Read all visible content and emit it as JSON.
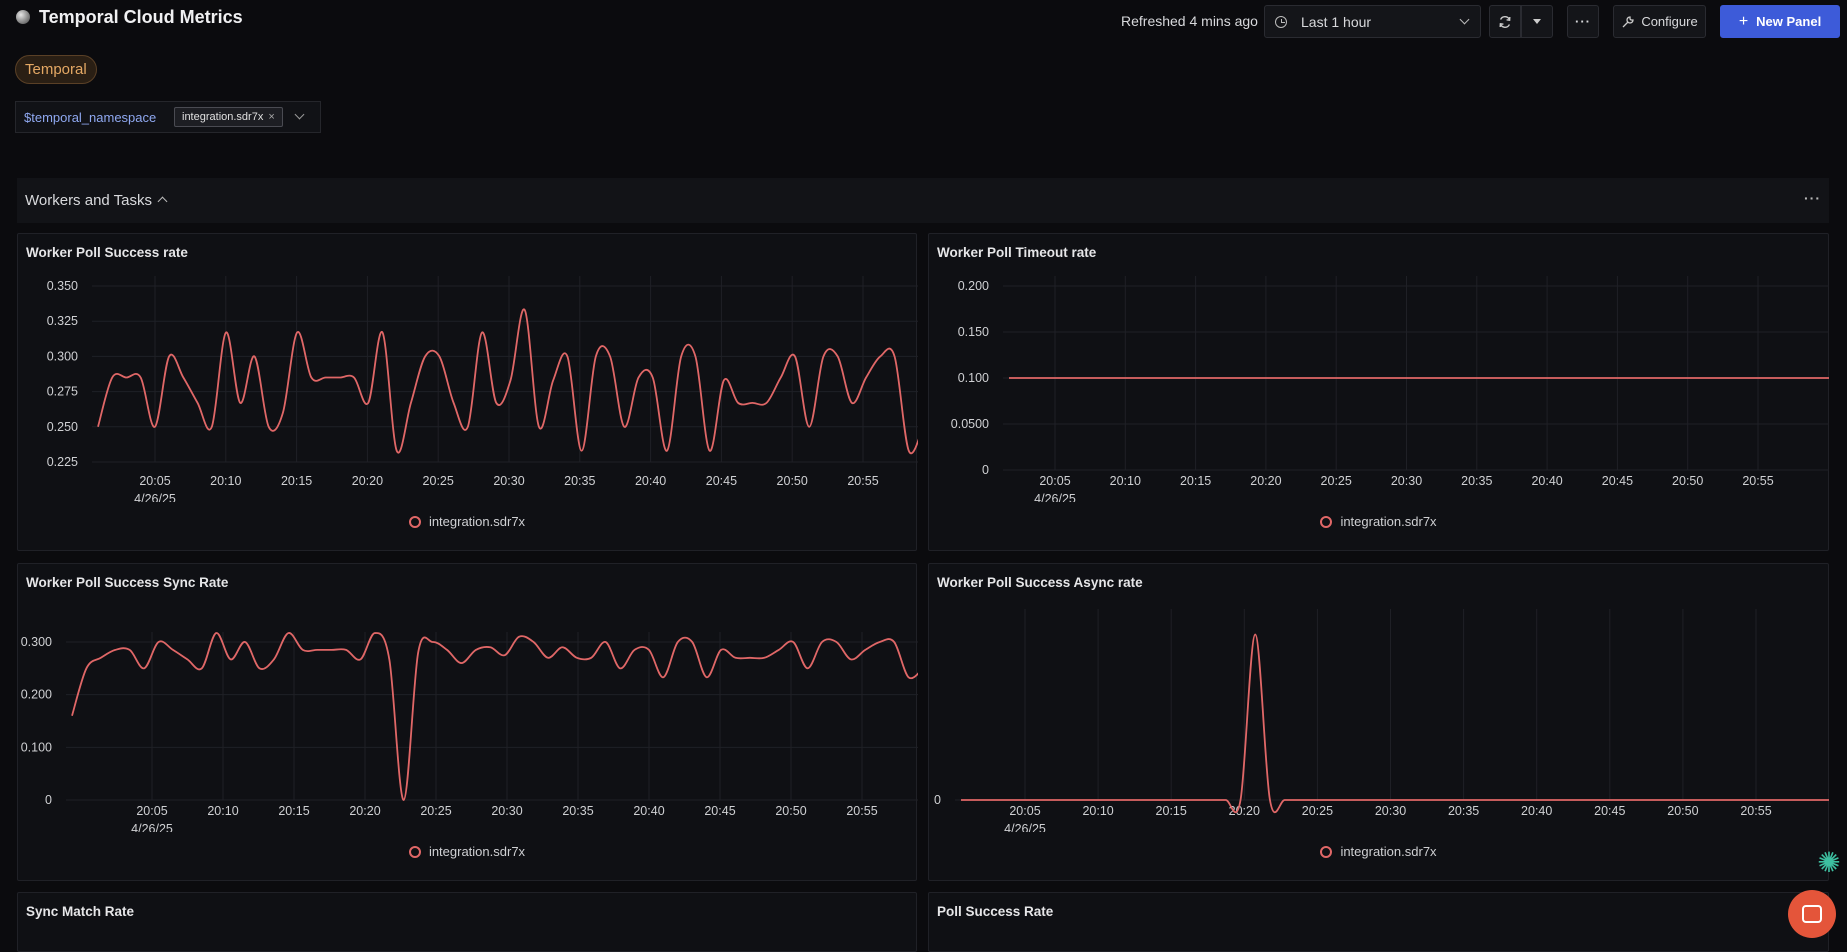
{
  "header": {
    "title": "Temporal Cloud Metrics",
    "refreshed": "Refreshed 4 mins ago",
    "time_range": "Last 1 hour",
    "configure_label": "Configure",
    "new_panel_label": "New Panel",
    "more_label": "···"
  },
  "tag": "Temporal",
  "variable": {
    "name": "$temporal_namespace",
    "value": "integration.sdr7x"
  },
  "row": {
    "title": "Workers and Tasks",
    "menu": "···"
  },
  "colors": {
    "series": "#e06767",
    "accent": "#3d5bd9",
    "tag": "#e4a864"
  },
  "x_ticks": [
    "20:05",
    "20:10",
    "20:15",
    "20:20",
    "20:25",
    "20:30",
    "20:35",
    "20:40",
    "20:45",
    "20:50",
    "20:55"
  ],
  "x_date": "4/26/25",
  "panels": [
    {
      "title": "Worker Poll Success rate",
      "legend": "integration.sdr7x",
      "chart_data": {
        "type": "line",
        "y_ticks": [
          "0.350",
          "0.325",
          "0.300",
          "0.275",
          "0.250",
          "0.225"
        ],
        "ylim": [
          0.225,
          0.35
        ],
        "series": [
          {
            "name": "integration.sdr7x",
            "values": [
              0.25,
              0.285,
              0.285,
              0.285,
              0.25,
              0.3,
              0.285,
              0.267,
              0.25,
              0.317,
              0.267,
              0.3,
              0.25,
              0.26,
              0.317,
              0.285,
              0.285,
              0.285,
              0.285,
              0.267,
              0.317,
              0.233,
              0.267,
              0.3,
              0.3,
              0.267,
              0.25,
              0.317,
              0.267,
              0.283,
              0.333,
              0.25,
              0.283,
              0.3,
              0.233,
              0.3,
              0.3,
              0.25,
              0.285,
              0.285,
              0.233,
              0.3,
              0.3,
              0.233,
              0.283,
              0.267,
              0.267,
              0.267,
              0.285,
              0.3,
              0.25,
              0.3,
              0.3,
              0.267,
              0.285,
              0.3,
              0.3,
              0.233,
              0.25
            ]
          }
        ]
      }
    },
    {
      "title": "Worker Poll Timeout rate",
      "legend": "integration.sdr7x",
      "chart_data": {
        "type": "line",
        "y_ticks": [
          "0.200",
          "0.150",
          "0.100",
          "0.0500",
          "0"
        ],
        "ylim": [
          0,
          0.2
        ],
        "series": [
          {
            "name": "integration.sdr7x",
            "values": [
              0.1,
              0.1,
              0.1,
              0.1,
              0.1,
              0.1,
              0.1,
              0.1,
              0.1,
              0.1,
              0.1,
              0.1
            ]
          }
        ]
      }
    },
    {
      "title": "Worker Poll Success Sync Rate",
      "legend": "integration.sdr7x",
      "chart_data": {
        "type": "line",
        "y_ticks": [
          "0.300",
          "0.200",
          "0.100",
          "0"
        ],
        "ylim": [
          0,
          0.3
        ],
        "series": [
          {
            "name": "integration.sdr7x",
            "values": [
              0.16,
              0.25,
              0.27,
              0.285,
              0.285,
              0.25,
              0.3,
              0.285,
              0.267,
              0.25,
              0.317,
              0.267,
              0.3,
              0.25,
              0.267,
              0.317,
              0.285,
              0.285,
              0.285,
              0.285,
              0.267,
              0.317,
              0.267,
              0.0,
              0.28,
              0.3,
              0.285,
              0.26,
              0.285,
              0.29,
              0.275,
              0.31,
              0.3,
              0.27,
              0.29,
              0.27,
              0.27,
              0.3,
              0.25,
              0.285,
              0.285,
              0.233,
              0.3,
              0.3,
              0.233,
              0.285,
              0.27,
              0.27,
              0.27,
              0.285,
              0.3,
              0.25,
              0.3,
              0.3,
              0.267,
              0.285,
              0.3,
              0.3,
              0.233,
              0.25
            ]
          }
        ]
      }
    },
    {
      "title": "Worker Poll Success Async rate",
      "legend": "integration.sdr7x",
      "chart_data": {
        "type": "line",
        "y_ticks": [
          "0"
        ],
        "ylim": [
          0,
          0.35
        ],
        "series": [
          {
            "name": "integration.sdr7x",
            "values": [
              0,
              0,
              0,
              0,
              0,
              0,
              0,
              0,
              0,
              0,
              0,
              0,
              0,
              0,
              0,
              0,
              0,
              0,
              0,
              0,
              0.32,
              0,
              0,
              0,
              0,
              0,
              0,
              0,
              0,
              0,
              0,
              0,
              0,
              0,
              0,
              0,
              0,
              0,
              0,
              0,
              0,
              0,
              0,
              0,
              0,
              0,
              0,
              0,
              0,
              0,
              0,
              0,
              0,
              0,
              0,
              0,
              0,
              0,
              0,
              0
            ]
          }
        ]
      }
    },
    {
      "title": "Sync Match Rate"
    },
    {
      "title": "Poll Success Rate"
    }
  ]
}
